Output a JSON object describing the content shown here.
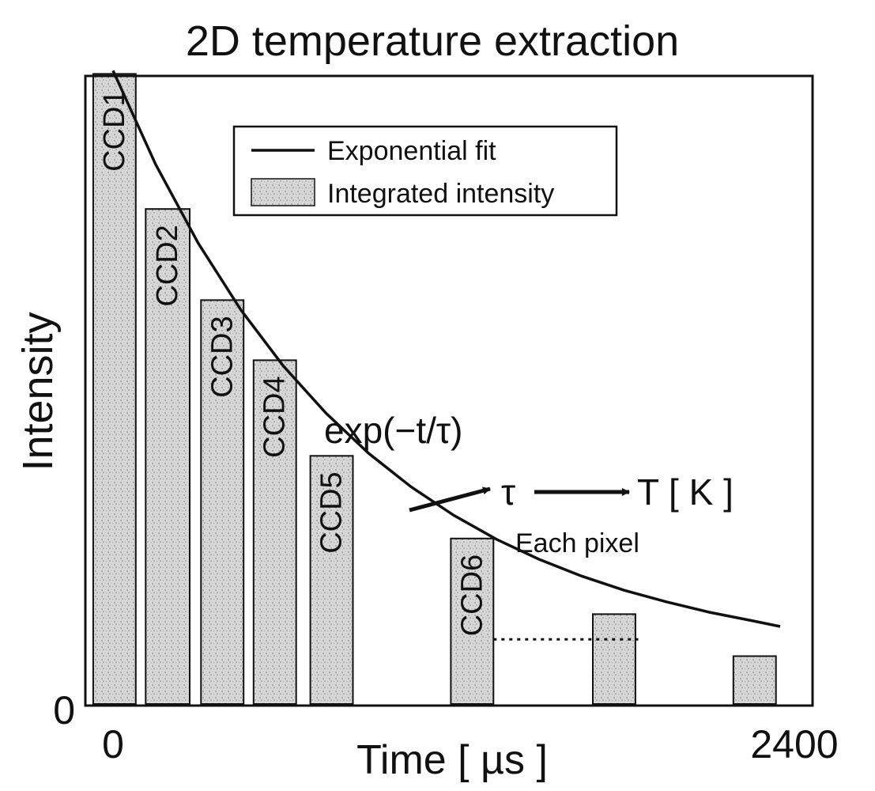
{
  "chart_data": {
    "type": "bar",
    "title": "2D temperature extraction",
    "xlabel": "Time [ µs ]",
    "ylabel": "Intensity",
    "xlim": [
      0,
      2400
    ],
    "ylim": [
      0,
      100
    ],
    "x_ticks": [
      "0",
      "2400"
    ],
    "y_ticks": [
      "0"
    ],
    "grid": false,
    "legend_position": "top-center",
    "legend": [
      {
        "name": "Exponential fit",
        "kind": "line"
      },
      {
        "name": "Integrated intensity",
        "kind": "bar"
      }
    ],
    "bar_fill": "#d8d8d8",
    "line_color": "#111111",
    "bars": [
      {
        "label": "CCD1",
        "x_start": -70,
        "x_end": 80,
        "value": 97.5
      },
      {
        "label": "CCD2",
        "x_start": 115,
        "x_end": 270,
        "value": 76.6
      },
      {
        "label": "",
        "x_start": 310,
        "x_end": 460,
        "value": 62.5
      },
      {
        "label": "CCD3",
        "x_start": 310,
        "x_end": 460,
        "value": 62.5
      },
      {
        "label": "CCD4",
        "x_start": 495,
        "x_end": 645,
        "value": 53.2
      },
      {
        "label": "CCD5",
        "x_start": 695,
        "x_end": 845,
        "value": 38.4
      },
      {
        "label": "CCD6",
        "x_start": 1190,
        "x_end": 1340,
        "value": 25.6
      },
      {
        "label": "",
        "x_start": 1690,
        "x_end": 1840,
        "value": 13.9
      },
      {
        "label": "",
        "x_start": 2185,
        "x_end": 2335,
        "value": 7.4
      }
    ],
    "fit": {
      "name": "Exponential fit",
      "x": [
        0,
        150,
        300,
        450,
        600,
        750,
        900,
        1050,
        1200,
        1350,
        1500,
        1650,
        1800,
        1950,
        2100,
        2250,
        2350
      ],
      "y": [
        98.0,
        83.5,
        71.3,
        61.0,
        52.3,
        45.0,
        38.8,
        33.6,
        29.2,
        25.5,
        22.4,
        19.8,
        17.6,
        15.8,
        14.2,
        12.9,
        12.0
      ]
    },
    "annotations": {
      "formula": "exp(−t/τ)",
      "tau": "τ",
      "temperature": "T [ K ]",
      "each_pixel": "Each pixel"
    },
    "dotted_reference": {
      "x_start": 1340,
      "x_end": 1850,
      "value": 10.0
    }
  }
}
